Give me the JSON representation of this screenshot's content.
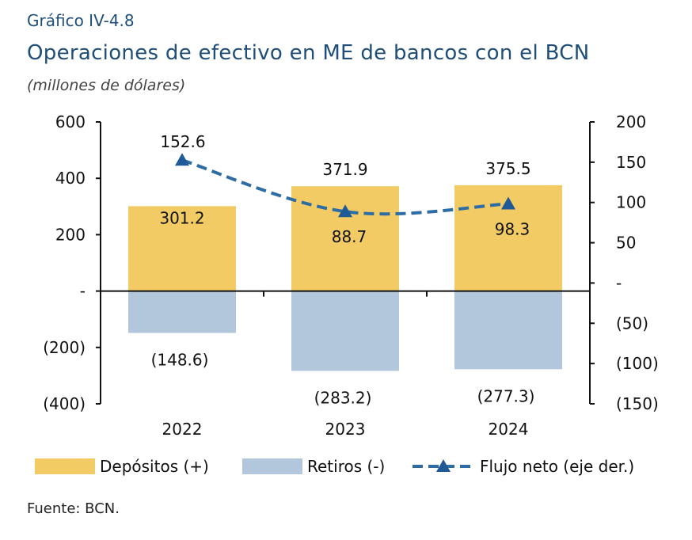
{
  "header": {
    "figure_label": "Gráfico IV-4.8",
    "title": "Operaciones de efectivo en ME de bancos con el BCN",
    "subtitle": "(millones de dólares)"
  },
  "source": "Fuente: BCN.",
  "chart_data": {
    "type": "bar",
    "categories": [
      "2022",
      "2023",
      "2024"
    ],
    "series": [
      {
        "name": "Depósitos (+)",
        "kind": "bar",
        "axis": "left",
        "color": "#f2cb64",
        "values": [
          301.2,
          371.9,
          375.5
        ],
        "labels": [
          "301.2",
          "371.9",
          "375.5"
        ]
      },
      {
        "name": "Retiros (-)",
        "kind": "bar",
        "axis": "left",
        "color": "#b3c7dc",
        "values": [
          -148.6,
          -283.2,
          -277.3
        ],
        "labels": [
          "(148.6)",
          "(283.2)",
          "(277.3)"
        ]
      },
      {
        "name": "Flujo neto (eje der.)",
        "kind": "line",
        "axis": "right",
        "color": "#2e6da4",
        "line_style": "dashed",
        "marker": "triangle",
        "values": [
          152.6,
          88.7,
          98.3
        ],
        "labels": [
          "152.6",
          "88.7",
          "98.3"
        ]
      }
    ],
    "y_left": {
      "ylim": [
        -400,
        600
      ],
      "ticks": [
        600,
        400,
        200,
        0,
        -200,
        -400
      ],
      "tick_labels": [
        "600",
        "400",
        "200",
        "-",
        "(200)",
        "(400)"
      ]
    },
    "y_right": {
      "ylim": [
        -150,
        200
      ],
      "ticks": [
        200,
        150,
        100,
        50,
        0,
        -50,
        -100,
        -150
      ],
      "tick_labels": [
        "200",
        "150",
        "100",
        "50",
        "-",
        "(50)",
        "(100)",
        "(150)"
      ]
    },
    "grid": false,
    "legend_position": "bottom"
  }
}
